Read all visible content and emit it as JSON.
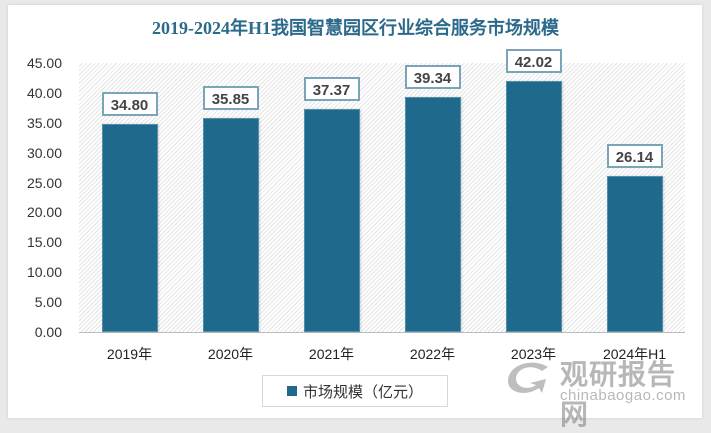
{
  "chart_data": {
    "type": "bar",
    "title": "2019-2024年H1我国智慧园区行业综合服务市场规模",
    "categories": [
      "2019年",
      "2020年",
      "2021年",
      "2022年",
      "2023年",
      "2024年H1"
    ],
    "series": [
      {
        "name": "市场规模（亿元）",
        "values": [
          34.8,
          35.85,
          37.37,
          39.34,
          42.02,
          26.14
        ],
        "color": "#1f6a8c"
      }
    ],
    "data_labels": [
      "34.80",
      "35.85",
      "37.37",
      "39.34",
      "42.02",
      "26.14"
    ],
    "xlabel": "",
    "ylabel": "",
    "ylim": [
      0,
      45
    ],
    "yticks": [
      "0.00",
      "5.00",
      "10.00",
      "15.00",
      "20.00",
      "25.00",
      "30.00",
      "35.00",
      "40.00",
      "45.00"
    ],
    "grid": false,
    "legend_position": "bottom"
  },
  "watermark": {
    "cn": "观研报告网",
    "en": "chinabaogao.com"
  }
}
